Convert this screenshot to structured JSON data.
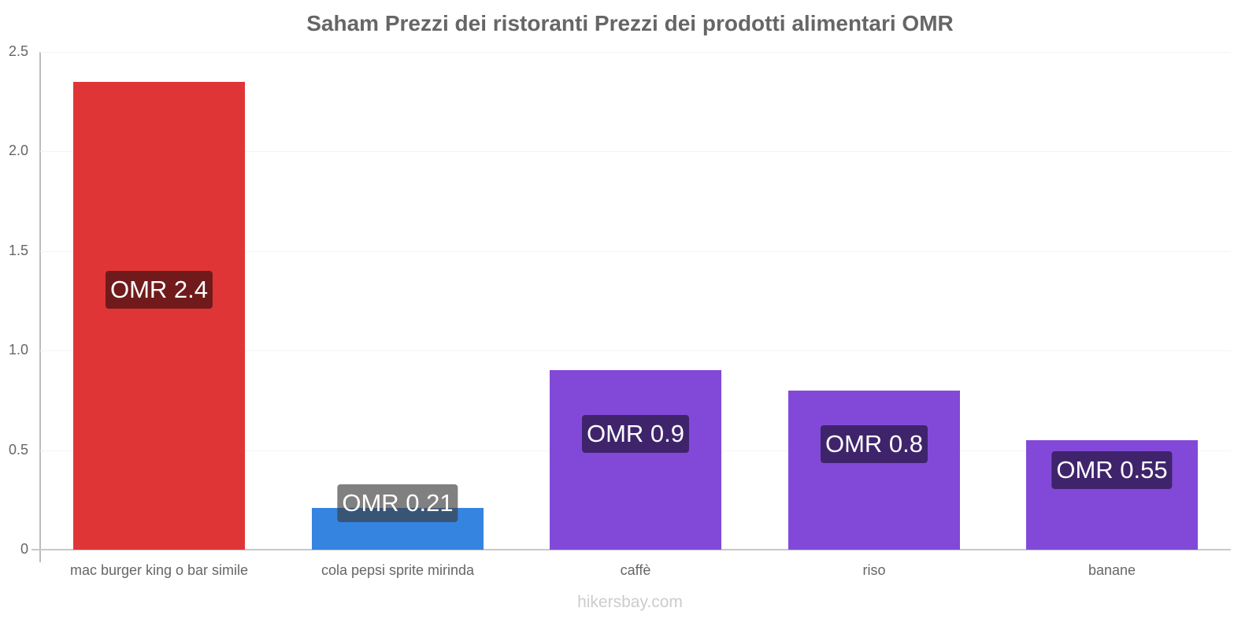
{
  "chart_data": {
    "type": "bar",
    "title": "Saham Prezzi dei ristoranti Prezzi dei prodotti alimentari OMR",
    "xlabel": "",
    "ylabel": "",
    "ylim": [
      0,
      2.5
    ],
    "yticks": [
      "0",
      "0.5",
      "1.0",
      "1.5",
      "2.0",
      "2.5"
    ],
    "grid": true,
    "legend": null,
    "categories": [
      "mac burger king o bar simile",
      "cola pepsi sprite mirinda",
      "caffè",
      "riso",
      "banane"
    ],
    "values": [
      2.35,
      0.21,
      0.9,
      0.8,
      0.55
    ],
    "data_labels": [
      "OMR 2.4",
      "OMR 0.21",
      "OMR 0.9",
      "OMR 0.8",
      "OMR 0.55"
    ],
    "bar_colors": [
      "#e03536",
      "#3584e0",
      "#8249d8",
      "#8249d8",
      "#8249d8"
    ],
    "label_bg_colors": [
      "#701a1b",
      "#1e3f6b",
      "#3f246c",
      "#3f246c",
      "#3f246c"
    ]
  },
  "title": "Saham Prezzi dei ristoranti Prezzi dei prodotti alimentari OMR",
  "watermark": "hikersbay.com"
}
